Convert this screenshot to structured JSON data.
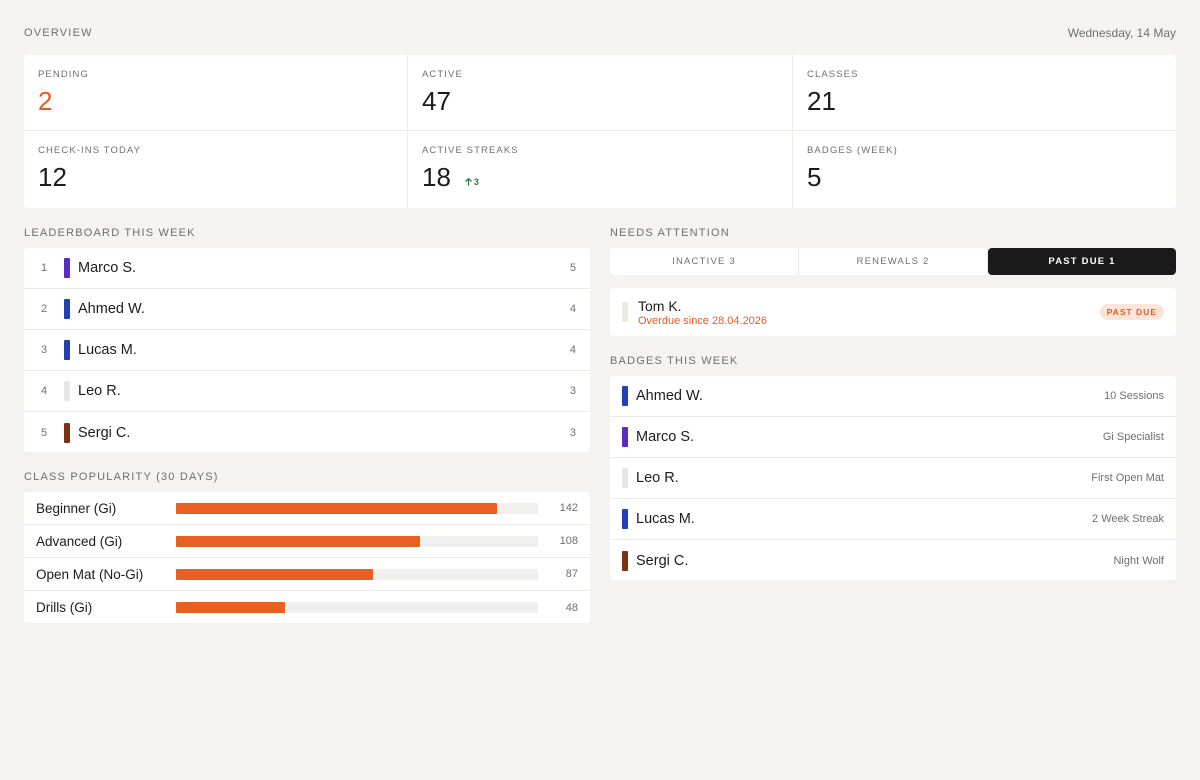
{
  "header": {
    "title": "OVERVIEW",
    "date": "Wednesday, 14 May"
  },
  "stats": [
    {
      "label": "PENDING",
      "value": "2",
      "accent": true
    },
    {
      "label": "ACTIVE",
      "value": "47"
    },
    {
      "label": "CLASSES",
      "value": "21"
    },
    {
      "label": "CHECK-INS TODAY",
      "value": "12"
    },
    {
      "label": "ACTIVE STREAKS",
      "value": "18",
      "delta": "3"
    },
    {
      "label": "BADGES (WEEK)",
      "value": "5"
    }
  ],
  "leaderboard": {
    "title": "LEADERBOARD THIS WEEK",
    "rows": [
      {
        "rank": "1",
        "name": "Marco S.",
        "score": "5",
        "color": "#5b2bc4"
      },
      {
        "rank": "2",
        "name": "Ahmed W.",
        "score": "4",
        "color": "#2340b8"
      },
      {
        "rank": "3",
        "name": "Lucas M.",
        "score": "4",
        "color": "#2340b8"
      },
      {
        "rank": "4",
        "name": "Leo R.",
        "score": "3",
        "color": "#e6e6e6"
      },
      {
        "rank": "5",
        "name": "Sergi C.",
        "score": "3",
        "color": "#7a3210"
      }
    ]
  },
  "class_popularity": {
    "title": "CLASS POPULARITY (30 DAYS)",
    "max": 160,
    "rows": [
      {
        "name": "Beginner (Gi)",
        "count": "142",
        "value": 142
      },
      {
        "name": "Advanced (Gi)",
        "count": "108",
        "value": 108
      },
      {
        "name": "Open Mat (No-Gi)",
        "count": "87",
        "value": 87
      },
      {
        "name": "Drills (Gi)",
        "count": "48",
        "value": 48
      }
    ]
  },
  "needs_attention": {
    "title": "NEEDS ATTENTION",
    "tabs": [
      {
        "label": "INACTIVE 3",
        "active": false
      },
      {
        "label": "RENEWALS 2",
        "active": false
      },
      {
        "label": "PAST DUE 1",
        "active": true
      }
    ],
    "item": {
      "name": "Tom K.",
      "sub": "Overdue since 28.04.2026",
      "badge": "PAST DUE",
      "color": "#ece8e4"
    }
  },
  "badges_week": {
    "title": "BADGES THIS WEEK",
    "rows": [
      {
        "name": "Ahmed W.",
        "badge": "10 Sessions",
        "color": "#2340b8"
      },
      {
        "name": "Marco S.",
        "badge": "Gi Specialist",
        "color": "#5b2bc4"
      },
      {
        "name": "Leo R.",
        "badge": "First Open Mat",
        "color": "#e6e6e6"
      },
      {
        "name": "Lucas M.",
        "badge": "2 Week Streak",
        "color": "#2340b8"
      },
      {
        "name": "Sergi C.",
        "badge": "Night Wolf",
        "color": "#7a3210"
      }
    ]
  },
  "colors": {
    "accent": "#e85f22",
    "success": "#2e7a4d",
    "background": "#f4f3f0"
  },
  "icons": {
    "delta": "arrow-up-icon"
  }
}
